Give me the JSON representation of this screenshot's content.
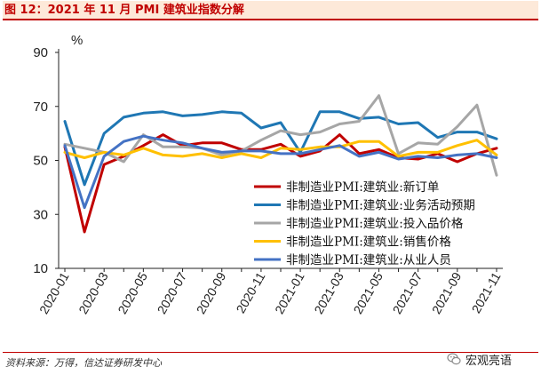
{
  "header": {
    "title": "图 12：2021 年 11 月 PMI 建筑业指数分解"
  },
  "footer": {
    "source": "资料来源：万得，信达证券研发中心"
  },
  "watermark": {
    "text": "宏观亮语",
    "icon": "wechat-icon"
  },
  "colors": {
    "s1": "#c00000",
    "s2": "#1f77b4",
    "s3": "#a6a6a6",
    "s4": "#ffc000",
    "s5": "#4472c4"
  },
  "chart_data": {
    "type": "line",
    "title": "",
    "xlabel": "",
    "ylabel": "%",
    "ylim": [
      10,
      90
    ],
    "yticks": [
      10,
      30,
      50,
      70,
      90
    ],
    "grid": false,
    "legend_position": "center-right",
    "x": [
      "2020-01",
      "2020-02",
      "2020-03",
      "2020-04",
      "2020-05",
      "2020-06",
      "2020-07",
      "2020-08",
      "2020-09",
      "2020-10",
      "2020-11",
      "2020-12",
      "2021-01",
      "2021-02",
      "2021-03",
      "2021-04",
      "2021-05",
      "2021-06",
      "2021-07",
      "2021-08",
      "2021-09",
      "2021-10",
      "2021-11"
    ],
    "xtick_labels": [
      "2020-01",
      "2020-03",
      "2020-05",
      "2020-07",
      "2020-09",
      "2020-11",
      "2021-01",
      "2021-03",
      "2021-05",
      "2021-07",
      "2021-09",
      "2021-11"
    ],
    "series": [
      {
        "name": "非制造业PMI:建筑业:新订单",
        "values": [
          55.0,
          23.5,
          48.5,
          51.5,
          55.5,
          59.5,
          55.5,
          56.5,
          56.5,
          54.0,
          54.0,
          56.0,
          51.5,
          53.5,
          59.5,
          52.5,
          54.0,
          51.0,
          50.5,
          52.5,
          49.5,
          52.5,
          54.5
        ]
      },
      {
        "name": "非制造业PMI:建筑业:业务活动预期",
        "values": [
          64.5,
          41.0,
          60.0,
          66.0,
          67.5,
          68.0,
          66.5,
          67.0,
          68.0,
          67.5,
          62.0,
          64.0,
          53.0,
          68.0,
          68.0,
          65.5,
          66.0,
          63.5,
          64.0,
          58.5,
          60.5,
          60.5,
          58.0
        ]
      },
      {
        "name": "非制造业PMI:建筑业:投入品价格",
        "values": [
          56.0,
          54.5,
          53.0,
          49.5,
          59.5,
          55.0,
          55.0,
          54.5,
          52.0,
          53.5,
          57.5,
          61.0,
          59.5,
          60.5,
          63.5,
          64.5,
          74.0,
          52.5,
          56.5,
          56.0,
          62.5,
          70.5,
          44.5
        ]
      },
      {
        "name": "非制造业PMI:建筑业:销售价格",
        "values": [
          53.0,
          51.0,
          53.0,
          52.0,
          54.5,
          52.0,
          51.5,
          52.5,
          51.0,
          52.5,
          51.0,
          54.5,
          54.0,
          55.0,
          55.0,
          57.0,
          57.0,
          51.5,
          53.0,
          53.0,
          55.5,
          57.5,
          52.0
        ]
      },
      {
        "name": "非制造业PMI:建筑业:从业人员",
        "values": [
          55.5,
          32.5,
          51.5,
          57.0,
          59.0,
          57.5,
          56.5,
          54.5,
          53.0,
          53.5,
          53.5,
          52.5,
          52.5,
          54.0,
          55.5,
          51.5,
          53.0,
          50.5,
          51.5,
          51.0,
          52.0,
          52.5,
          51.0
        ]
      }
    ]
  }
}
